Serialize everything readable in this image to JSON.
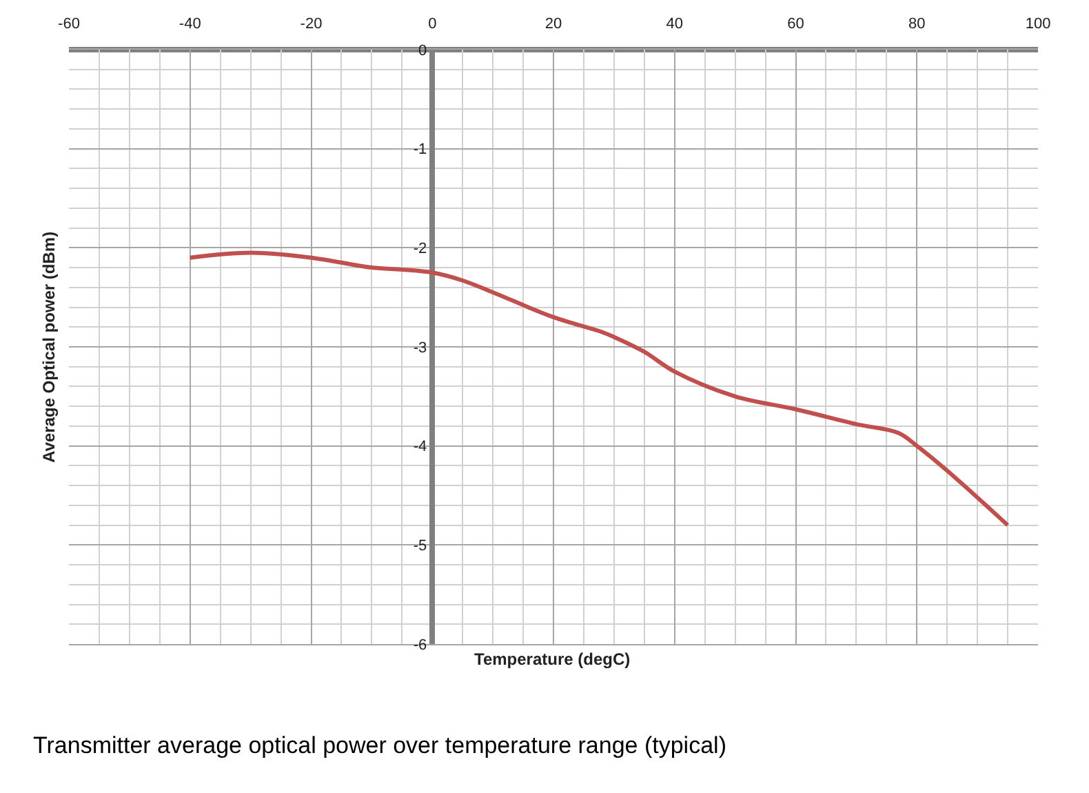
{
  "chart_data": {
    "type": "line",
    "xlabel": "Temperature (degC)",
    "ylabel": "Average Optical power (dBm)",
    "annotations": [
      "Transmitter average optical power over temperature range (typical)"
    ],
    "x": [
      -40,
      -30,
      -20,
      -10,
      -5,
      0,
      5,
      10,
      20,
      28,
      30,
      35,
      40,
      50,
      60,
      70,
      77,
      80,
      85,
      95
    ],
    "series": [
      {
        "color": "#c0504d",
        "values": [
          -2.1,
          -2.05,
          -2.1,
          -2.2,
          -2.22,
          -2.25,
          -2.33,
          -2.45,
          -2.7,
          -2.85,
          -2.9,
          -3.05,
          -3.25,
          -3.5,
          -3.63,
          -3.78,
          -3.87,
          -4.0,
          -4.25,
          -4.8
        ]
      }
    ],
    "xlim": [
      -60,
      100
    ],
    "xticks": [
      -60,
      -40,
      -20,
      0,
      20,
      40,
      60,
      80,
      100
    ],
    "ylim": [
      -6,
      0
    ],
    "yticks": [
      -6,
      -5,
      -4,
      -3,
      -2,
      -1,
      0
    ],
    "grid": true,
    "legend": false,
    "marker": "none",
    "line_style": "solid"
  }
}
